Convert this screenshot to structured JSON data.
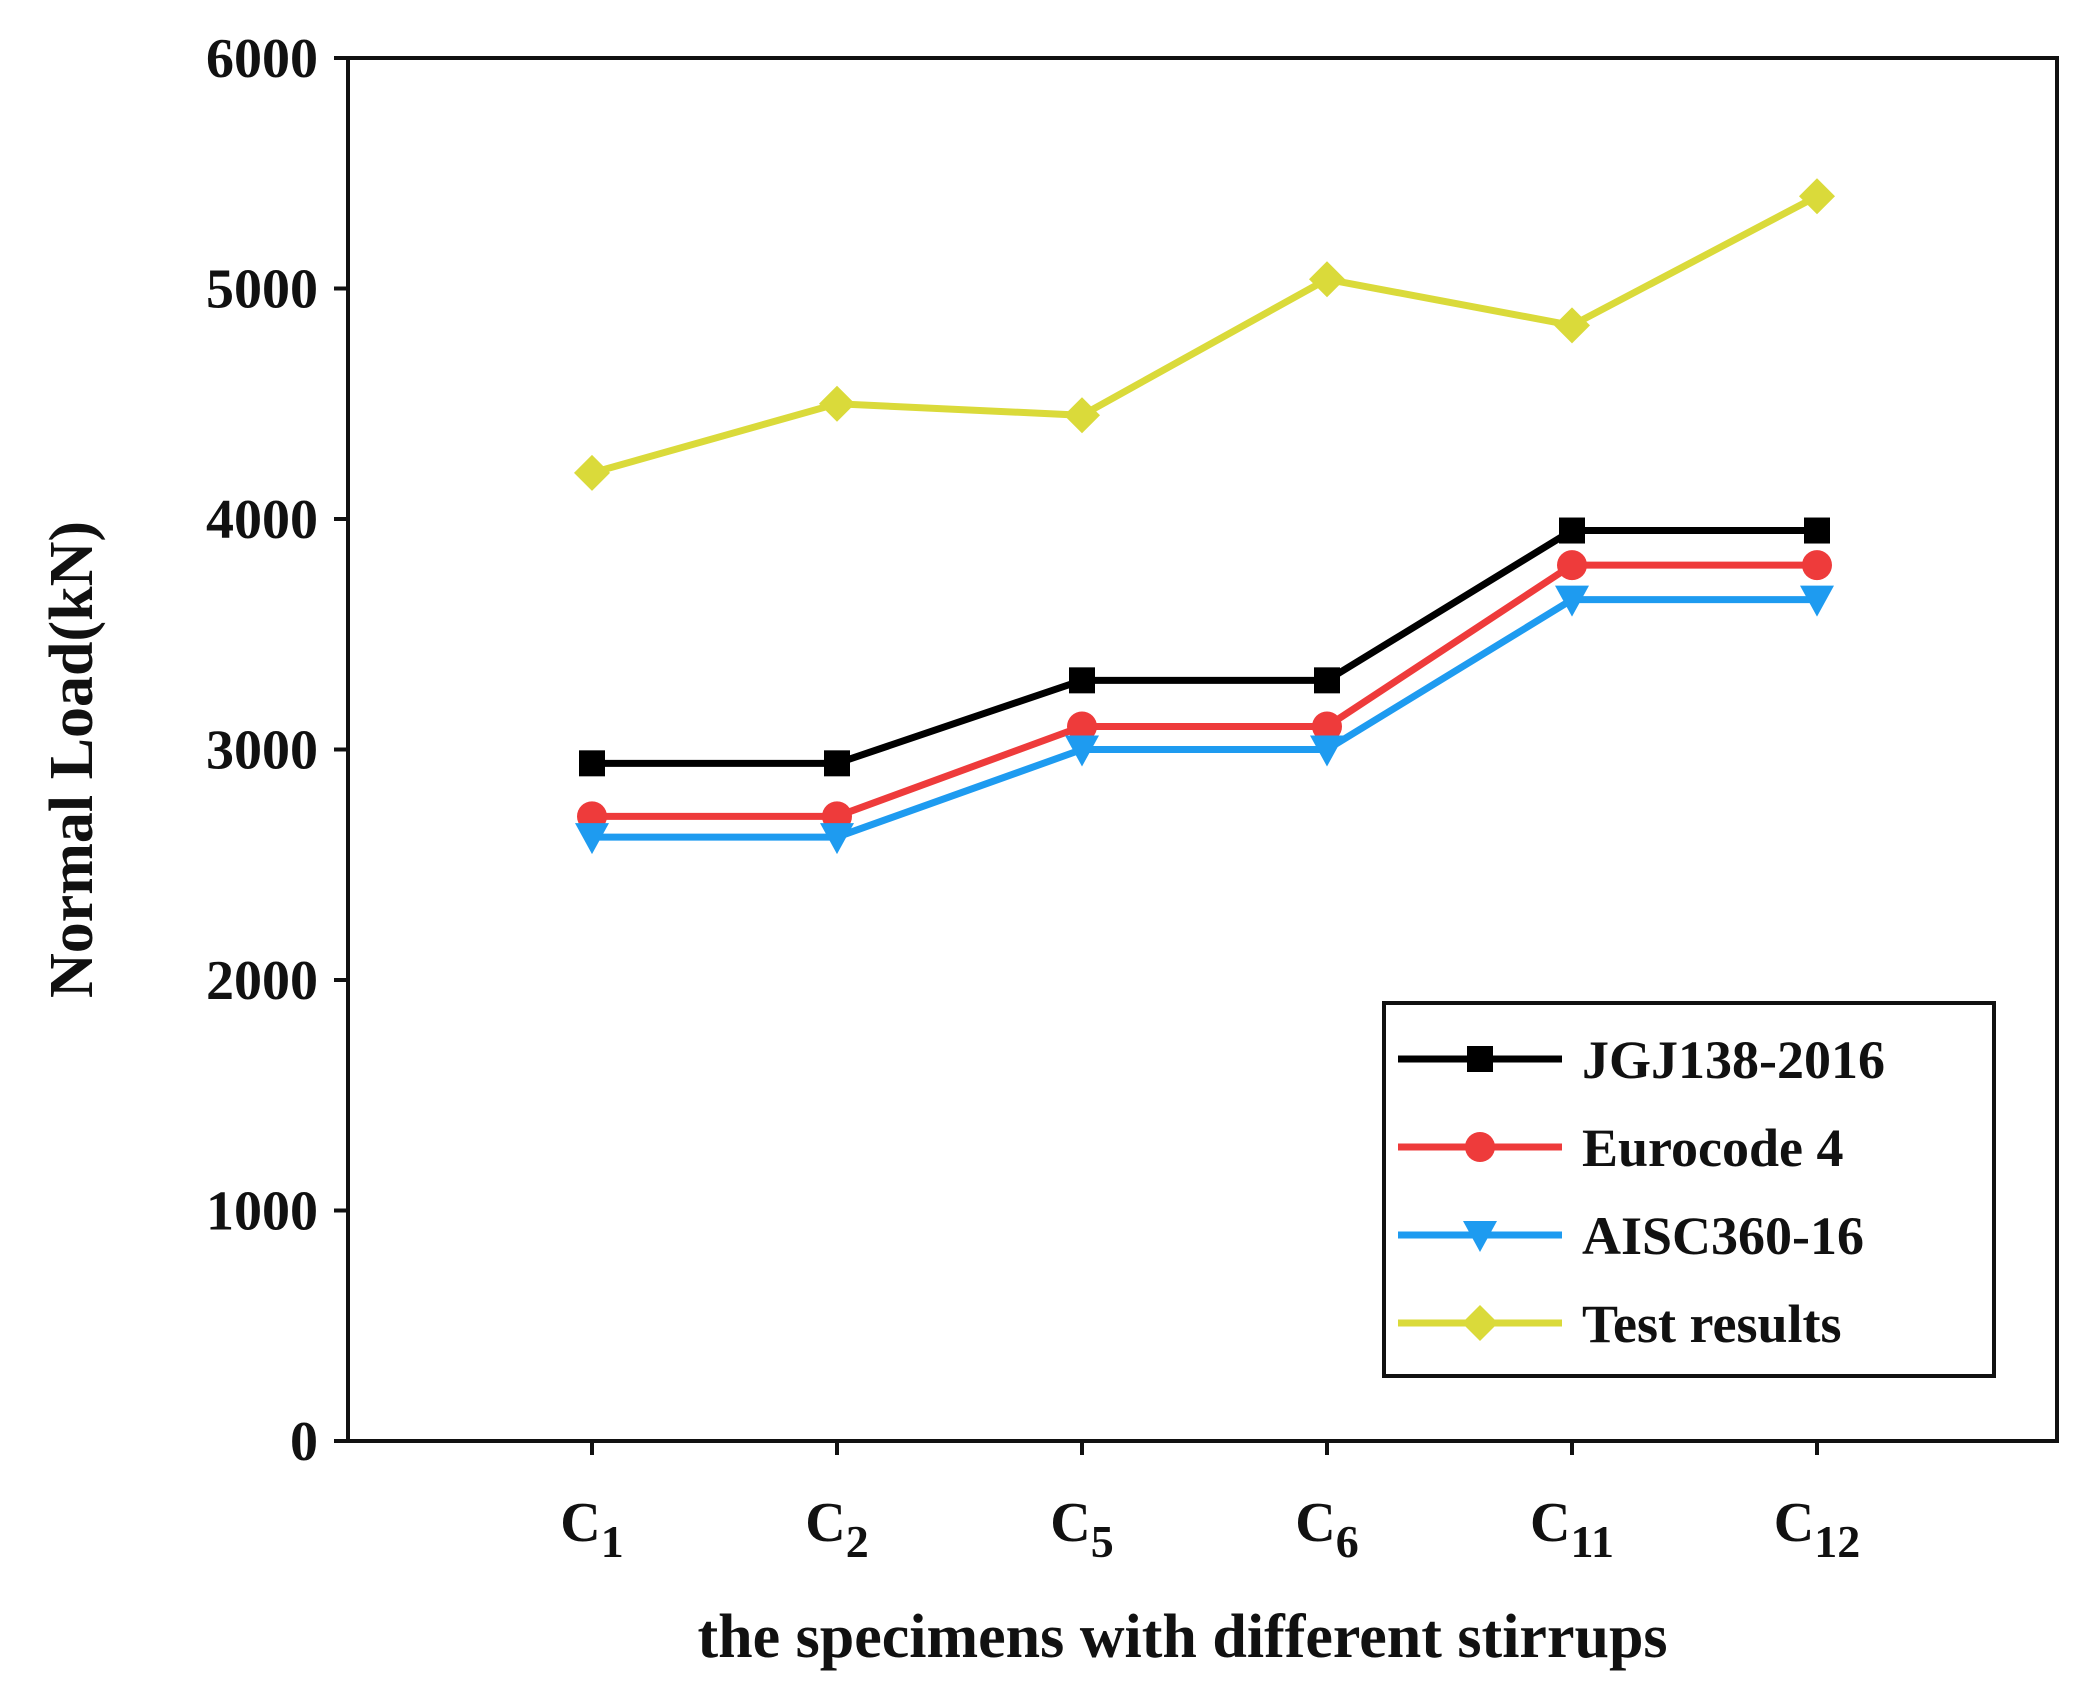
{
  "chart_data": {
    "type": "line",
    "title": "",
    "xlabel": "the specimens with different stirrups",
    "ylabel": "Normal Load(kN)",
    "ylim": [
      0,
      6000
    ],
    "yticks": [
      0,
      1000,
      2000,
      3000,
      4000,
      5000,
      6000
    ],
    "categories": [
      {
        "base": "C",
        "sub": "1"
      },
      {
        "base": "C",
        "sub": "2"
      },
      {
        "base": "C",
        "sub": "5"
      },
      {
        "base": "C",
        "sub": "6"
      },
      {
        "base": "C",
        "sub": "11"
      },
      {
        "base": "C",
        "sub": "12"
      }
    ],
    "legend_position": "bottom-right",
    "grid": false,
    "series": [
      {
        "name": "JGJ138-2016",
        "color": "#000000",
        "marker": "square",
        "values": [
          2940,
          2940,
          3300,
          3300,
          3950,
          3950
        ]
      },
      {
        "name": "Eurocode 4",
        "color": "#ee3b3b",
        "marker": "circle",
        "values": [
          2710,
          2710,
          3100,
          3100,
          3800,
          3800
        ]
      },
      {
        "name": "AISC360-16",
        "color": "#1e9bf0",
        "marker": "triangle-down",
        "values": [
          2620,
          2620,
          3000,
          3000,
          3650,
          3650
        ]
      },
      {
        "name": "Test results",
        "color": "#dada3a",
        "marker": "diamond",
        "values": [
          4200,
          4500,
          4450,
          5040,
          4840,
          5400
        ]
      }
    ]
  }
}
